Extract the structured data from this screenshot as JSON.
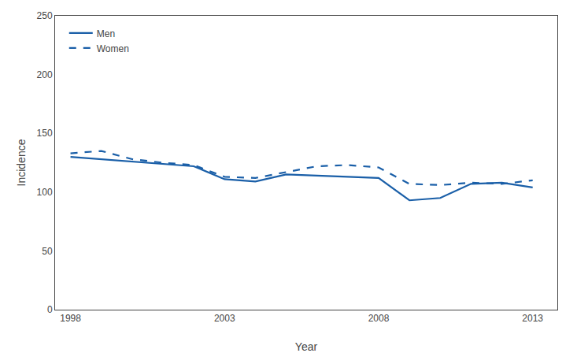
{
  "chart_data": {
    "type": "line",
    "x": [
      1998,
      1999,
      2000,
      2001,
      2002,
      2003,
      2004,
      2005,
      2006,
      2007,
      2008,
      2009,
      2010,
      2011,
      2012,
      2013
    ],
    "series": [
      {
        "name": "Men",
        "color": "#1a5fa8",
        "line_style": "solid",
        "values": [
          130,
          128,
          126,
          124,
          122,
          111,
          109,
          115,
          114,
          113,
          112,
          93,
          95,
          107,
          108,
          104
        ]
      },
      {
        "name": "Women",
        "color": "#1a5fa8",
        "line_style": "dashed",
        "values": [
          133,
          135,
          128,
          125,
          123,
          113,
          112,
          117,
          122,
          123,
          121,
          107,
          106,
          108,
          107,
          110
        ]
      }
    ],
    "xlabel": "Year",
    "ylabel": "Incidence",
    "xlim": [
      1997.5,
      2013.8
    ],
    "ylim": [
      0,
      250
    ],
    "xticks": [
      1998,
      2003,
      2008,
      2013
    ],
    "yticks": [
      0,
      50,
      100,
      150,
      200,
      250
    ],
    "grid": false,
    "legend": "upper left"
  }
}
